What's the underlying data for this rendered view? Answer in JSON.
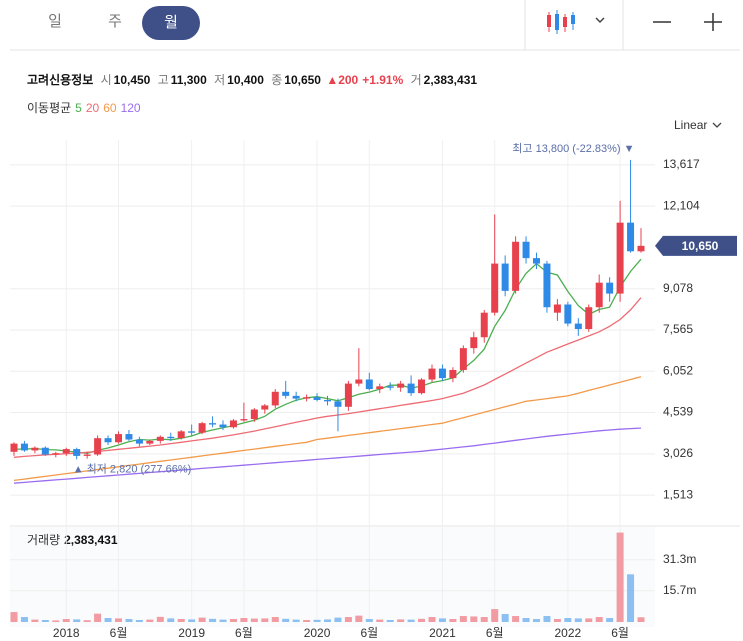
{
  "ui": {
    "tabs": [
      "일",
      "주",
      "월"
    ],
    "scale": "Linear",
    "ma_title": "이동평균",
    "quote": {
      "name": "고려신용정보",
      "open_label": "시",
      "open": "10,450",
      "high_label": "고",
      "high": "11,300",
      "low_label": "저",
      "low": "10,400",
      "close_label": "종",
      "close": "10,650",
      "change": "▲200",
      "change_pct": "+1.91%",
      "volume_label": "거",
      "volume": "2,383,431"
    }
  },
  "chart_data": [
    {
      "type": "candlestick",
      "up_color": "#e8414e",
      "down_color": "#2e8ae6",
      "grid": true,
      "categories": [
        null,
        null,
        null,
        null,
        null,
        "2018",
        null,
        null,
        null,
        null,
        "6월",
        null,
        null,
        null,
        null,
        null,
        null,
        "2019",
        null,
        null,
        null,
        null,
        "6월",
        null,
        null,
        null,
        null,
        null,
        null,
        "2020",
        null,
        null,
        null,
        null,
        "6월",
        null,
        null,
        null,
        null,
        null,
        null,
        "2021",
        null,
        null,
        null,
        null,
        "6월",
        null,
        null,
        null,
        null,
        null,
        null,
        "2022",
        null,
        null,
        null,
        null,
        "6월",
        null,
        null
      ],
      "open": [
        3100,
        3400,
        3150,
        3250,
        3000,
        3050,
        3200,
        2950,
        3000,
        3600,
        3450,
        3750,
        3550,
        3400,
        3500,
        3650,
        3600,
        3850,
        3800,
        4150,
        4100,
        4000,
        4250,
        4300,
        4650,
        4800,
        5300,
        5150,
        5050,
        5100,
        5000,
        4950,
        4750,
        5600,
        5750,
        5400,
        5500,
        5450,
        5600,
        5250,
        5750,
        6150,
        5800,
        6100,
        6900,
        7300,
        8200,
        10000,
        9000,
        10800,
        10200,
        10000,
        8200,
        8500,
        7800,
        7600,
        8400,
        9300,
        8900,
        11500,
        10450
      ],
      "high": [
        3450,
        3500,
        3300,
        3300,
        3100,
        3250,
        3250,
        3100,
        3700,
        3700,
        3850,
        3900,
        3650,
        3550,
        3700,
        3800,
        3900,
        4100,
        4200,
        4400,
        4250,
        4300,
        4900,
        4700,
        4850,
        5400,
        5700,
        5300,
        5200,
        5250,
        5150,
        5050,
        5700,
        6900,
        6000,
        5600,
        5650,
        5700,
        5900,
        5800,
        6300,
        6300,
        6200,
        7000,
        7500,
        8300,
        11800,
        10300,
        11000,
        11000,
        10400,
        10100,
        8700,
        8600,
        8000,
        8500,
        9600,
        9500,
        12300,
        13800,
        11300
      ],
      "low": [
        2950,
        3100,
        3050,
        2950,
        2900,
        2950,
        2820,
        2850,
        2950,
        3350,
        3400,
        3500,
        3300,
        3350,
        3400,
        3500,
        3550,
        3700,
        3750,
        4000,
        3900,
        3950,
        4200,
        4200,
        4500,
        4700,
        5050,
        4950,
        4950,
        4950,
        4800,
        3850,
        4600,
        5500,
        5350,
        5250,
        5350,
        5300,
        5150,
        5200,
        5650,
        5700,
        5650,
        6000,
        6700,
        7100,
        8100,
        8800,
        8900,
        10000,
        9800,
        8200,
        7900,
        7700,
        7350,
        7500,
        8200,
        8600,
        8600,
        10400,
        10400
      ],
      "close": [
        3400,
        3150,
        3250,
        3000,
        3050,
        3200,
        2950,
        3000,
        3600,
        3450,
        3750,
        3550,
        3400,
        3500,
        3650,
        3600,
        3850,
        3800,
        4150,
        4100,
        4000,
        4250,
        4300,
        4650,
        4800,
        5300,
        5150,
        5050,
        5100,
        5000,
        4950,
        4750,
        5600,
        5750,
        5400,
        5500,
        5450,
        5600,
        5250,
        5750,
        6150,
        5800,
        6100,
        6900,
        7300,
        8200,
        10000,
        9000,
        10800,
        10200,
        10000,
        8400,
        8500,
        7800,
        7600,
        8400,
        9300,
        8900,
        11500,
        10450,
        10650
      ],
      "lines": [
        {
          "name": "5",
          "color": "#4caf50",
          "values": [
            3200,
            3200,
            3220,
            3180,
            3170,
            3130,
            3090,
            3040,
            3160,
            3240,
            3350,
            3470,
            3550,
            3530,
            3570,
            3540,
            3600,
            3680,
            3810,
            3900,
            3980,
            4060,
            4160,
            4260,
            4400,
            4660,
            4840,
            4990,
            5080,
            5120,
            5050,
            4970,
            5080,
            5210,
            5290,
            5400,
            5540,
            5540,
            5440,
            5510,
            5640,
            5710,
            5810,
            6140,
            6450,
            6860,
            7700,
            8280,
            9060,
            9640,
            10000,
            9680,
            9580,
            8980,
            8460,
            8140,
            8320,
            8400,
            9140,
            9710,
            10160
          ]
        },
        {
          "name": "20",
          "color": "#ee6b74",
          "values": [
            2900,
            2930,
            2960,
            2990,
            3010,
            3030,
            3050,
            3080,
            3110,
            3150,
            3190,
            3230,
            3270,
            3310,
            3350,
            3400,
            3450,
            3500,
            3550,
            3600,
            3660,
            3720,
            3790,
            3860,
            3940,
            4020,
            4100,
            4180,
            4260,
            4340,
            4400,
            4450,
            4500,
            4560,
            4620,
            4680,
            4740,
            4800,
            4860,
            4920,
            4980,
            5050,
            5150,
            5250,
            5400,
            5550,
            5750,
            5950,
            6150,
            6350,
            6550,
            6750,
            6900,
            7050,
            7200,
            7350,
            7500,
            7700,
            7950,
            8300,
            8750
          ]
        },
        {
          "name": "60",
          "color": "#f29a4a",
          "values": [
            2050,
            2100,
            2150,
            2200,
            2250,
            2300,
            2350,
            2400,
            2450,
            2500,
            2550,
            2600,
            2650,
            2700,
            2750,
            2800,
            2850,
            2900,
            2950,
            3000,
            3050,
            3100,
            3150,
            3200,
            3250,
            3300,
            3350,
            3400,
            3450,
            3550,
            3600,
            3650,
            3700,
            3750,
            3800,
            3850,
            3900,
            3950,
            4000,
            4050,
            4100,
            4150,
            4250,
            4350,
            4450,
            4550,
            4650,
            4750,
            4850,
            4950,
            5000,
            5050,
            5100,
            5150,
            5250,
            5350,
            5450,
            5550,
            5650,
            5750,
            5850
          ]
        },
        {
          "name": "120",
          "color": "#9a6cf0",
          "values": [
            1950,
            1980,
            2010,
            2040,
            2070,
            2100,
            2130,
            2160,
            2190,
            2220,
            2250,
            2280,
            2310,
            2340,
            2370,
            2400,
            2430,
            2460,
            2490,
            2520,
            2550,
            2580,
            2610,
            2640,
            2670,
            2700,
            2730,
            2760,
            2790,
            2820,
            2850,
            2880,
            2910,
            2940,
            2970,
            3000,
            3030,
            3060,
            3090,
            3120,
            3160,
            3200,
            3240,
            3280,
            3320,
            3370,
            3420,
            3470,
            3520,
            3570,
            3620,
            3670,
            3710,
            3750,
            3790,
            3830,
            3870,
            3900,
            3930,
            3950,
            3970
          ]
        }
      ],
      "ylim": [
        600,
        14530
      ],
      "yticks": [
        {
          "value": 1513,
          "label": "1,513"
        },
        {
          "value": 3026,
          "label": "3,026"
        },
        {
          "value": 4539,
          "label": "4,539"
        },
        {
          "value": 6052,
          "label": "6,052"
        },
        {
          "value": 7565,
          "label": "7,565"
        },
        {
          "value": 9078,
          "label": "9,078"
        },
        {
          "value": 12104,
          "label": "12,104"
        },
        {
          "value": 13617,
          "label": "13,617"
        }
      ],
      "last_label": {
        "value": 10650,
        "label": "10,650"
      },
      "max_label": "최고 13,800 (-22.83%) ▼",
      "min_label": "▲ 최저 2,820 (277.66%)"
    },
    {
      "type": "bar",
      "title": "거래량",
      "current_label": "2,383,431",
      "up_color": "#f29ba2",
      "down_color": "#8cbff2",
      "values": [
        5000000,
        2500000,
        1200000,
        1000000,
        800000,
        1500000,
        1300000,
        900000,
        4200000,
        2000000,
        1800000,
        1500000,
        1000000,
        1200000,
        2600000,
        1800000,
        1500000,
        1300000,
        2200000,
        1600000,
        1200000,
        1500000,
        2000000,
        1700000,
        1800000,
        2500000,
        1600000,
        1200000,
        1000000,
        1100000,
        1300000,
        2200000,
        2500000,
        3200000,
        1500000,
        1200000,
        1000000,
        1300000,
        1200000,
        1600000,
        2500000,
        1800000,
        1500000,
        3000000,
        2800000,
        2500000,
        6500000,
        4000000,
        3000000,
        2000000,
        1500000,
        3000000,
        1500000,
        2000000,
        1800000,
        1800000,
        2500000,
        2000000,
        45000000,
        24000000,
        2383431
      ],
      "ylim": [
        0,
        47300000
      ],
      "yticks": [
        {
          "value": 15700000,
          "label": "15.7m"
        },
        {
          "value": 31300000,
          "label": "31.3m"
        }
      ]
    }
  ]
}
